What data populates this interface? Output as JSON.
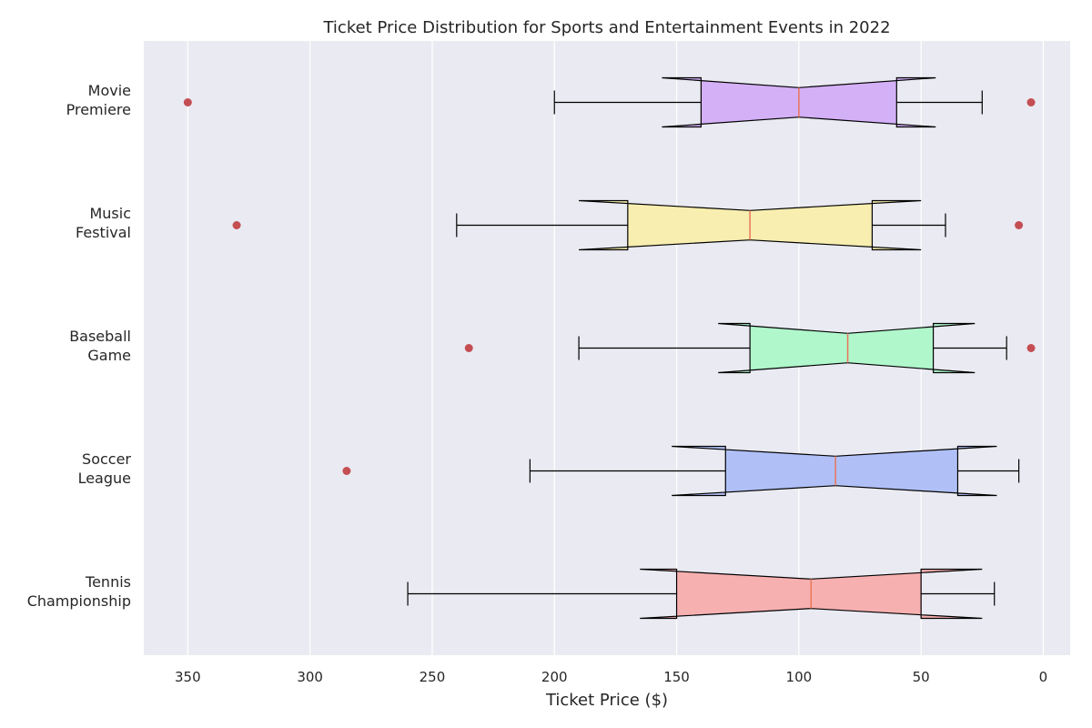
{
  "chart_data": {
    "type": "box",
    "orientation": "horizontal",
    "notched": true,
    "title": "Ticket Price Distribution for Sports and Entertainment Events in 2022",
    "xlabel": "Ticket Price ($)",
    "ylabel": "",
    "xlim": [
      368,
      -11
    ],
    "x_inverted": true,
    "xticks": [
      350,
      300,
      250,
      200,
      150,
      100,
      50,
      0
    ],
    "grid": true,
    "background_color": "#eaeaf2",
    "grid_color": "#ffffff",
    "median_color": "#e8765a",
    "outlier_color": "#c44e52",
    "categories": [
      [
        "Movie",
        "Premiere"
      ],
      [
        "Music",
        "Festival"
      ],
      [
        "Baseball",
        "Game"
      ],
      [
        "Soccer",
        "League"
      ],
      [
        "Tennis",
        "Championship"
      ]
    ],
    "boxes": [
      {
        "min": 25,
        "q1": 60,
        "median": 100,
        "q3": 140,
        "max": 200,
        "notch_low": 44,
        "notch_high": 156,
        "outliers": [
          350,
          5
        ],
        "color": "#d4b0f7"
      },
      {
        "min": 40,
        "q1": 70,
        "median": 120,
        "q3": 170,
        "max": 240,
        "notch_low": 50,
        "notch_high": 190,
        "outliers": [
          330,
          10
        ],
        "color": "#f7eeb0"
      },
      {
        "min": 15,
        "q1": 45,
        "median": 80,
        "q3": 120,
        "max": 190,
        "notch_low": 28,
        "notch_high": 133,
        "outliers": [
          235,
          5
        ],
        "color": "#b0f7cc"
      },
      {
        "min": 10,
        "q1": 35,
        "median": 85,
        "q3": 130,
        "max": 210,
        "notch_low": 19,
        "notch_high": 152,
        "outliers": [
          285
        ],
        "color": "#b0c0f7"
      },
      {
        "min": 20,
        "q1": 50,
        "median": 95,
        "q3": 150,
        "max": 260,
        "notch_low": 25,
        "notch_high": 165,
        "outliers": [],
        "color": "#f7b0b0"
      }
    ]
  }
}
